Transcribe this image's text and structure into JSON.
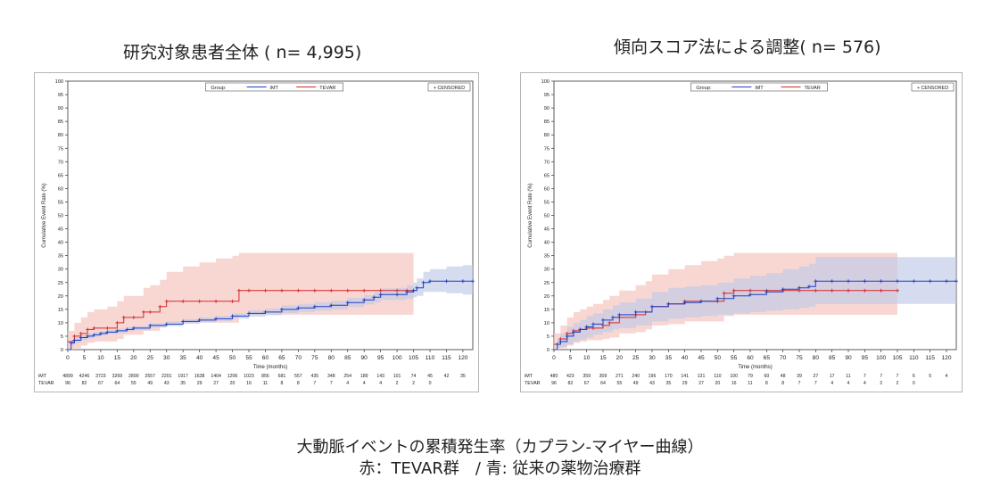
{
  "panel_titles": [
    "研究対象患者全体 ( n= 4,995)",
    "傾向スコア法による調整( n= 576)"
  ],
  "caption": {
    "line1": "大動脈イベントの累積発生率（カプラン-マイヤー曲線）",
    "line2": "赤：TEVAR群　/ 青: 従来の薬物治療群"
  },
  "colors": {
    "imt": "#1f3fbf",
    "tevar": "#d42a2a",
    "imt_band": "#bfc9e6",
    "tevar_band": "#f5c6c0"
  },
  "chart_data": [
    {
      "type": "line",
      "xlabel": "Time (months)",
      "ylabel": "Cumulative Event Rate (%)",
      "xlim": [
        0,
        123
      ],
      "ylim": [
        0,
        100
      ],
      "x_ticks": [
        0,
        5,
        10,
        15,
        20,
        25,
        30,
        35,
        40,
        45,
        50,
        55,
        60,
        65,
        70,
        75,
        80,
        85,
        90,
        95,
        100,
        105,
        110,
        115,
        120
      ],
      "y_ticks": [
        0,
        5,
        10,
        15,
        20,
        25,
        30,
        35,
        40,
        45,
        50,
        55,
        60,
        65,
        70,
        75,
        80,
        85,
        90,
        95,
        100
      ],
      "legend": {
        "group_label": "Group:",
        "censored_label": "+ CENSORED",
        "placement": "top-center"
      },
      "series": [
        {
          "name": "iMT",
          "color_key": "imt",
          "x": [
            0,
            1,
            2,
            4,
            6,
            8,
            10,
            12,
            15,
            18,
            20,
            25,
            30,
            35,
            40,
            45,
            50,
            55,
            60,
            65,
            70,
            75,
            80,
            85,
            90,
            93,
            95,
            100,
            103,
            105,
            106,
            108,
            110,
            115,
            120,
            123
          ],
          "y": [
            0,
            2.5,
            3.5,
            4.5,
            5,
            5.5,
            6,
            6.5,
            7,
            7.5,
            8,
            9,
            9.5,
            10.5,
            11,
            11.5,
            12.5,
            13.5,
            14,
            15,
            15.5,
            16,
            16.5,
            17.5,
            18.5,
            19.5,
            20.5,
            20.5,
            21.5,
            22,
            23,
            25,
            25.5,
            25.5,
            25.5,
            25.5
          ],
          "band_lower": [
            0,
            1.5,
            2.5,
            3.5,
            4.2,
            4.8,
            5.3,
            5.8,
            6.2,
            6.8,
            7.2,
            8.2,
            8.7,
            9.6,
            10.2,
            10.6,
            11.5,
            12.3,
            12.8,
            13.6,
            14.1,
            14.5,
            15,
            15.8,
            16.8,
            17.5,
            18.5,
            18.5,
            19,
            19.5,
            20,
            21.5,
            21.5,
            21,
            20.5,
            20
          ],
          "band_upper": [
            0,
            3.5,
            4.5,
            5.5,
            6,
            6.5,
            7,
            7.3,
            7.8,
            8.4,
            8.8,
            9.8,
            10.5,
            11.4,
            12,
            12.5,
            13.5,
            14.7,
            15.3,
            16.5,
            17,
            17.6,
            18.2,
            19.3,
            20.3,
            21.5,
            22.8,
            23,
            24,
            25,
            26.5,
            29,
            30,
            31,
            31.5,
            32
          ]
        },
        {
          "name": "TEVAR",
          "color_key": "tevar",
          "x": [
            0,
            2,
            4,
            6,
            8,
            12,
            15,
            17,
            20,
            23,
            25,
            28,
            30,
            35,
            40,
            45,
            50,
            52,
            55,
            60,
            65,
            70,
            75,
            80,
            85,
            90,
            95,
            100,
            103,
            105
          ],
          "y": [
            3,
            5,
            6,
            7.5,
            8,
            8,
            10,
            12,
            12,
            14,
            14,
            16,
            18,
            18,
            18,
            18,
            18,
            22,
            22,
            22,
            22,
            22,
            22,
            22,
            22,
            22,
            22,
            22,
            22,
            22
          ],
          "band_lower": [
            0,
            0.5,
            1.5,
            2.5,
            3,
            3,
            4,
            5.5,
            5.5,
            7,
            7,
            8.5,
            10,
            10,
            10,
            10,
            10,
            13,
            13,
            13,
            13,
            13,
            13,
            13,
            13,
            13,
            13,
            13,
            13,
            13
          ],
          "band_upper": [
            7,
            10,
            12,
            14,
            15,
            16,
            18,
            20,
            20,
            23,
            24,
            26,
            29,
            31,
            32.5,
            34,
            35,
            36,
            36,
            36,
            36,
            36,
            36,
            36,
            36,
            36,
            36,
            36,
            36,
            36
          ]
        }
      ],
      "risk_table": {
        "times": [
          0,
          5,
          10,
          15,
          20,
          25,
          30,
          35,
          40,
          45,
          50,
          55,
          60,
          65,
          70,
          75,
          80,
          85,
          90,
          95,
          100,
          105,
          110,
          115,
          120
        ],
        "rows": [
          {
            "label": "iMT",
            "values": [
              "4899",
              "4246",
              "3723",
              "3269",
              "2890",
              "2557",
              "2201",
              "1917",
              "1638",
              "1404",
              "1206",
              "1023",
              "856",
              "681",
              "557",
              "435",
              "348",
              "254",
              "189",
              "143",
              "101",
              "74",
              "45",
              "42",
              "35"
            ]
          },
          {
            "label": "TEVAR",
            "values": [
              "96",
              "82",
              "67",
              "64",
              "55",
              "49",
              "43",
              "35",
              "29",
              "27",
              "20",
              "16",
              "11",
              "8",
              "8",
              "7",
              "7",
              "4",
              "4",
              "4",
              "2",
              "2",
              "0",
              "",
              ""
            ]
          }
        ]
      }
    },
    {
      "type": "line",
      "xlabel": "Time (months)",
      "ylabel": "Cumulative Event Rate (%)",
      "xlim": [
        0,
        123
      ],
      "ylim": [
        0,
        100
      ],
      "x_ticks": [
        0,
        5,
        10,
        15,
        20,
        25,
        30,
        35,
        40,
        45,
        50,
        55,
        60,
        65,
        70,
        75,
        80,
        85,
        90,
        95,
        100,
        105,
        110,
        115,
        120
      ],
      "y_ticks": [
        0,
        5,
        10,
        15,
        20,
        25,
        30,
        35,
        40,
        45,
        50,
        55,
        60,
        65,
        70,
        75,
        80,
        85,
        90,
        95,
        100
      ],
      "legend": {
        "group_label": "Group:",
        "censored_label": "+ CENSORED",
        "placement": "top-center"
      },
      "series": [
        {
          "name": "iMT",
          "color_key": "imt",
          "x": [
            0,
            1,
            2,
            4,
            6,
            8,
            10,
            12,
            15,
            18,
            20,
            25,
            30,
            35,
            40,
            45,
            50,
            55,
            60,
            65,
            70,
            75,
            78,
            80,
            85,
            90,
            95,
            100,
            105,
            110,
            115,
            120,
            123
          ],
          "y": [
            0,
            2,
            3,
            5,
            6.5,
            7.5,
            8.5,
            9.5,
            11,
            12,
            13,
            14,
            16,
            17,
            17.5,
            18,
            19,
            20,
            20.5,
            21.5,
            22.5,
            23,
            23.5,
            25.5,
            25.5,
            25.5,
            25.5,
            25.5,
            25.5,
            25.5,
            25.5,
            25.5,
            25.5
          ],
          "band_lower": [
            0,
            0.5,
            1,
            2,
            3,
            3.8,
            4.5,
            5.5,
            6.5,
            7.5,
            8,
            9,
            10.5,
            11.5,
            12,
            12.5,
            13,
            13.5,
            14,
            14.5,
            15,
            15.5,
            16,
            17,
            17,
            17,
            17,
            17,
            17,
            17,
            17,
            17,
            17
          ],
          "band_upper": [
            0,
            4,
            6,
            8.5,
            10,
            11,
            12.5,
            13.5,
            15,
            16.5,
            17.5,
            19,
            21.5,
            23,
            23.5,
            24,
            25,
            26.5,
            27.5,
            28.5,
            30,
            31,
            32,
            34.5,
            34.5,
            34.5,
            34.5,
            34.5,
            34.5,
            34.5,
            34.5,
            34.5,
            34.5
          ]
        },
        {
          "name": "TEVAR",
          "color_key": "tevar",
          "x": [
            0,
            2,
            4,
            6,
            8,
            10,
            12,
            15,
            17,
            20,
            25,
            28,
            30,
            35,
            40,
            45,
            50,
            52,
            55,
            60,
            65,
            70,
            75,
            80,
            85,
            90,
            95,
            100,
            105
          ],
          "y": [
            2,
            4,
            6,
            7,
            7.5,
            8,
            8,
            9,
            10,
            12,
            13,
            14,
            16,
            17,
            18,
            18,
            18,
            21,
            22,
            22,
            22,
            22,
            22,
            22,
            22,
            22,
            22,
            22,
            22
          ],
          "band_lower": [
            0,
            0.5,
            1.5,
            2.5,
            3,
            3.5,
            3.5,
            4,
            4.5,
            6,
            6.5,
            7.5,
            9,
            9.5,
            10.5,
            10.5,
            10.5,
            12.5,
            13,
            13,
            13,
            13,
            13,
            13,
            13,
            13,
            13,
            13,
            13
          ],
          "band_upper": [
            6,
            9,
            12,
            14,
            15,
            16,
            17,
            18.5,
            20,
            22,
            24,
            25.5,
            28,
            30,
            31.5,
            33,
            34,
            35,
            36,
            36,
            36,
            36,
            36,
            36,
            36,
            36,
            36,
            36,
            36
          ]
        }
      ],
      "risk_table": {
        "times": [
          0,
          5,
          10,
          15,
          20,
          25,
          30,
          35,
          40,
          45,
          50,
          55,
          60,
          65,
          70,
          75,
          80,
          85,
          90,
          95,
          100,
          105,
          110,
          115,
          120
        ],
        "rows": [
          {
            "label": "iMT",
            "values": [
              "480",
              "423",
              "359",
              "309",
              "271",
              "240",
              "196",
              "170",
              "141",
              "131",
              "110",
              "100",
              "79",
              "60",
              "48",
              "39",
              "27",
              "17",
              "11",
              "7",
              "7",
              "7",
              "6",
              "5",
              "4"
            ]
          },
          {
            "label": "TEVAR",
            "values": [
              "96",
              "82",
              "67",
              "64",
              "55",
              "49",
              "43",
              "35",
              "29",
              "27",
              "20",
              "16",
              "11",
              "8",
              "8",
              "7",
              "7",
              "4",
              "4",
              "4",
              "2",
              "2",
              "0",
              "",
              ""
            ]
          }
        ]
      }
    }
  ]
}
